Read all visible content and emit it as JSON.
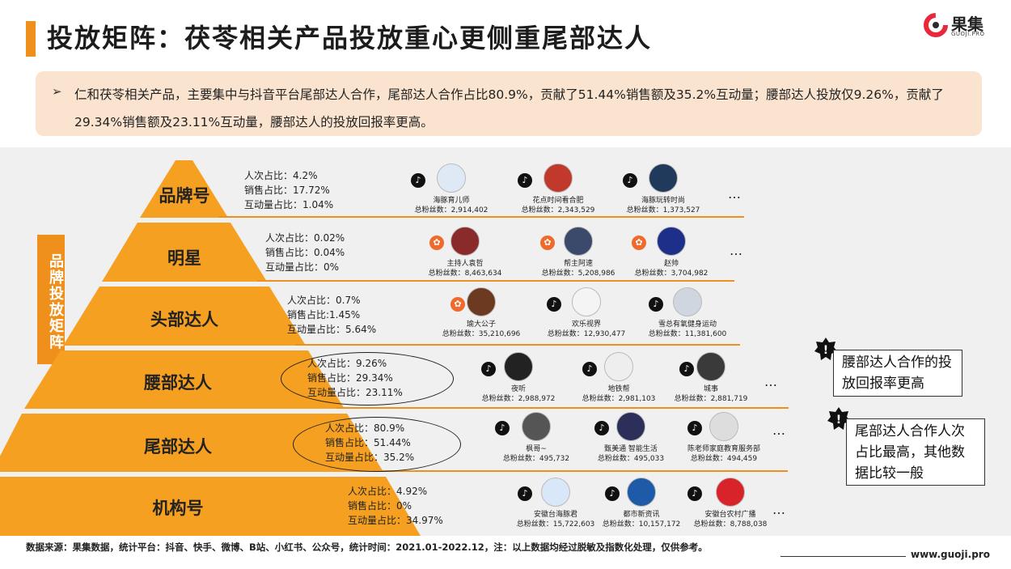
{
  "title": "投放矩阵：茯苓相关产品投放重心更侧重尾部达人",
  "logo": {
    "cn": "果集",
    "en": "GUOJI.PRO"
  },
  "summary": {
    "bullet": "➢",
    "text": "仁和茯苓相关产品，主要集中与抖音平台尾部达人合作，尾部达人合作占比80.9%，贡献了51.44%销售额及35.2%互动量；腰部达人投放仅9.26%，贡献了29.34%销售额及23.11%互动量，腰部达人的投放回报率更高。"
  },
  "vertical_label": "品牌投放矩阵",
  "tiers": [
    {
      "label": "品牌号",
      "stats": [
        "人次占比：4.2%",
        "销售占比：17.72%",
        "互动量占比：1.04%"
      ],
      "accounts": [
        {
          "platform": "douyin-icon",
          "name": "海豚育儿师",
          "fans": "总粉丝数：2,914,402"
        },
        {
          "platform": "douyin-icon",
          "name": "花点时间看合肥",
          "fans": "总粉丝数：2,343,529"
        },
        {
          "platform": "douyin-icon",
          "name": "海豚玩转时尚",
          "fans": "总粉丝数：1,373,527"
        }
      ],
      "more": "…"
    },
    {
      "label": "明星",
      "stats": [
        "人次占比：0.02%",
        "销售占比：0.04%",
        "互动量占比：0%"
      ],
      "accounts": [
        {
          "platform": "kuaishou-icon",
          "name": "主持人袁哲",
          "fans": "总粉丝数：8,463,634"
        },
        {
          "platform": "kuaishou-icon",
          "name": "帮主阿速",
          "fans": "总粉丝数：5,208,986"
        },
        {
          "platform": "kuaishou-icon",
          "name": "赵帅",
          "fans": "总粉丝数：3,704,982"
        }
      ],
      "more": "…"
    },
    {
      "label": "头部达人",
      "stats": [
        "人次占比：0.7%",
        "销售占比:1.45%",
        "互动量占比：5.64%"
      ],
      "accounts": [
        {
          "platform": "kuaishou-icon",
          "name": "瑜大公子",
          "fans": "总粉丝数：35,210,696"
        },
        {
          "platform": "douyin-icon",
          "name": "欢乐视界",
          "fans": "总粉丝数：12,930,477"
        },
        {
          "platform": "douyin-icon",
          "name": "雪总有氧健身运动",
          "fans": "总粉丝数：11,381,600"
        }
      ],
      "more": "…"
    },
    {
      "label": "腰部达人",
      "stats": [
        "人次占比：9.26%",
        "销售占比：29.34%",
        "互动量占比：23.11%"
      ],
      "accounts": [
        {
          "platform": "douyin-icon",
          "name": "夜听",
          "fans": "总粉丝数：2,988,972"
        },
        {
          "platform": "douyin-icon",
          "name": "地铁帮",
          "fans": "总粉丝数：2,981,103"
        },
        {
          "platform": "douyin-icon",
          "name": "城事",
          "fans": "总粉丝数：2,881,719"
        }
      ],
      "more": "…"
    },
    {
      "label": "尾部达人",
      "stats": [
        "人次占比：80.9%",
        "销售占比：51.44%",
        "互动量占比：35.2%"
      ],
      "accounts": [
        {
          "platform": "douyin-icon",
          "name": "枫哥~",
          "fans": "总粉丝数：495,732"
        },
        {
          "platform": "douyin-icon",
          "name": "甄美通 智能生活",
          "fans": "总粉丝数：495,033"
        },
        {
          "platform": "douyin-icon",
          "name": "陈老师家庭教育服务部",
          "fans": "总粉丝数：494,459"
        }
      ],
      "more": "…"
    },
    {
      "label": "机构号",
      "stats": [
        "人次占比：4.92%",
        "销售占比：0%",
        "互动量占比：34.97%"
      ],
      "accounts": [
        {
          "platform": "douyin-icon",
          "name": "安徽台海豚君",
          "fans": "总粉丝数：15,722,603"
        },
        {
          "platform": "douyin-icon",
          "name": "都市新资讯",
          "fans": "总粉丝数：10,157,172"
        },
        {
          "platform": "douyin-icon",
          "name": "安徽台农村广播",
          "fans": "总粉丝数：8,788,038"
        }
      ],
      "more": "…"
    }
  ],
  "callouts": [
    {
      "text": "腰部达人合作的投放回报率更高"
    },
    {
      "text": "尾部达人合作人次占比最高，其他数据比较一般"
    }
  ],
  "footer": {
    "source": "数据来源：果集数据，统计平台：抖音、快手、微博、B站、小红书、公众号，统计时间：2021.01-2022.12，注：以上数据均经过脱敏及指数化处理，仅供参考。",
    "url": "www.guoji.pro"
  },
  "colors": {
    "accent": "#f0901c",
    "summary_bg": "#fbe4cf",
    "band_bg": "#f0f0f0"
  }
}
